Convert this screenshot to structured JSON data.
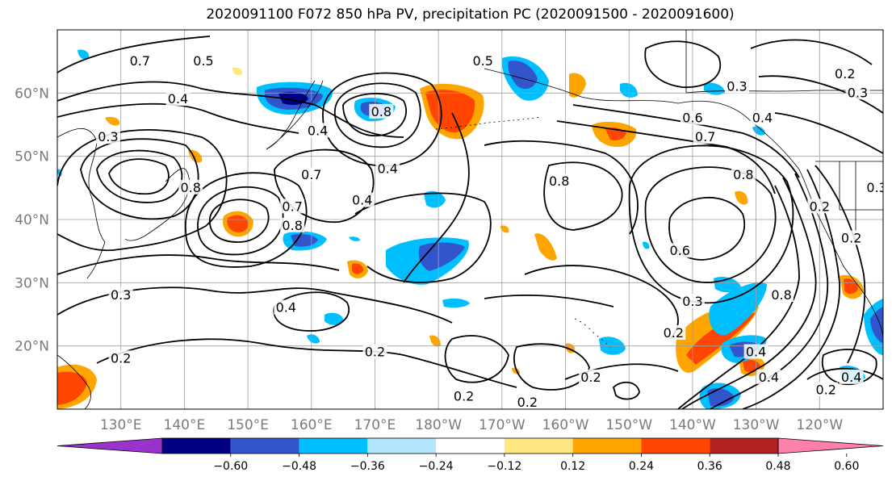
{
  "title": "2020091100 F072 850 hPa PV, precipitation PC (2020091500 - 2020091600)",
  "map": {
    "lon_range": [
      120,
      250
    ],
    "lat_range": [
      10,
      70
    ],
    "lat_ticks": [
      {
        "value": 20,
        "label": "20°N"
      },
      {
        "value": 30,
        "label": "30°N"
      },
      {
        "value": 40,
        "label": "40°N"
      },
      {
        "value": 50,
        "label": "50°N"
      },
      {
        "value": 60,
        "label": "60°N"
      }
    ],
    "lon_ticks": [
      {
        "value": 130,
        "label": "130°E"
      },
      {
        "value": 140,
        "label": "140°E"
      },
      {
        "value": 150,
        "label": "150°E"
      },
      {
        "value": 160,
        "label": "160°E"
      },
      {
        "value": 170,
        "label": "170°E"
      },
      {
        "value": 180,
        "label": "180°W"
      },
      {
        "value": 190,
        "label": "170°W"
      },
      {
        "value": 200,
        "label": "160°W"
      },
      {
        "value": 210,
        "label": "150°W"
      },
      {
        "value": 220,
        "label": "140°W"
      },
      {
        "value": 230,
        "label": "130°W"
      },
      {
        "value": 240,
        "label": "120°W"
      }
    ],
    "gridlines": true,
    "pv_contour_labels": [
      {
        "lon": 133,
        "lat": 65,
        "text": "0.7"
      },
      {
        "lon": 143,
        "lat": 65,
        "text": "0.5"
      },
      {
        "lon": 139,
        "lat": 59,
        "text": "0.4"
      },
      {
        "lon": 128,
        "lat": 53,
        "text": "0.3"
      },
      {
        "lon": 141,
        "lat": 45,
        "text": "0.8"
      },
      {
        "lon": 161,
        "lat": 54,
        "text": "0.4"
      },
      {
        "lon": 160,
        "lat": 47,
        "text": "0.7"
      },
      {
        "lon": 157,
        "lat": 39,
        "text": "0.8"
      },
      {
        "lon": 157,
        "lat": 42,
        "text": "0.7"
      },
      {
        "lon": 171,
        "lat": 57,
        "text": "0.8"
      },
      {
        "lon": 172,
        "lat": 48,
        "text": "0.4"
      },
      {
        "lon": 168,
        "lat": 43,
        "text": "0.4"
      },
      {
        "lon": 187,
        "lat": 65,
        "text": "0.5"
      },
      {
        "lon": 199,
        "lat": 46,
        "text": "0.8"
      },
      {
        "lon": 220,
        "lat": 56,
        "text": "0.6"
      },
      {
        "lon": 222,
        "lat": 53,
        "text": "0.7"
      },
      {
        "lon": 231,
        "lat": 56,
        "text": "0.4"
      },
      {
        "lon": 227,
        "lat": 61,
        "text": "0.3"
      },
      {
        "lon": 246,
        "lat": 60,
        "text": "0.3"
      },
      {
        "lon": 244,
        "lat": 63,
        "text": "0.2"
      },
      {
        "lon": 228,
        "lat": 47,
        "text": "0.8"
      },
      {
        "lon": 249,
        "lat": 45,
        "text": "0.3"
      },
      {
        "lon": 240,
        "lat": 42,
        "text": "0.2"
      },
      {
        "lon": 245,
        "lat": 37,
        "text": "0.2"
      },
      {
        "lon": 218,
        "lat": 35,
        "text": "0.6"
      },
      {
        "lon": 220,
        "lat": 27,
        "text": "0.3"
      },
      {
        "lon": 234,
        "lat": 28,
        "text": "0.8"
      },
      {
        "lon": 217,
        "lat": 22,
        "text": "0.2"
      },
      {
        "lon": 230,
        "lat": 19,
        "text": "0.4"
      },
      {
        "lon": 232,
        "lat": 15,
        "text": "0.4"
      },
      {
        "lon": 245,
        "lat": 15,
        "text": "0.4"
      },
      {
        "lon": 241,
        "lat": 13,
        "text": "0.2"
      },
      {
        "lon": 130,
        "lat": 28,
        "text": "0.3"
      },
      {
        "lon": 156,
        "lat": 26,
        "text": "0.4"
      },
      {
        "lon": 130,
        "lat": 18,
        "text": "0.2"
      },
      {
        "lon": 170,
        "lat": 19,
        "text": "0.2"
      },
      {
        "lon": 184,
        "lat": 12,
        "text": "0.2"
      },
      {
        "lon": 204,
        "lat": 15,
        "text": "0.2"
      },
      {
        "lon": 194,
        "lat": 11,
        "text": "0.2"
      }
    ]
  },
  "colorbar": {
    "levels": [
      -0.6,
      -0.48,
      -0.36,
      -0.24,
      -0.12,
      0.12,
      0.24,
      0.36,
      0.48,
      0.6
    ],
    "labels": [
      "−0.60",
      "−0.48",
      "−0.36",
      "−0.24",
      "−0.12",
      "0.12",
      "0.24",
      "0.36",
      "0.48",
      "0.60"
    ],
    "colors": [
      "#9933cc",
      "#000080",
      "#3355cc",
      "#00bfff",
      "#b3e5fc",
      "#ffffff",
      "#ffe680",
      "#ffa500",
      "#ff4500",
      "#b22222",
      "#ff80aa"
    ]
  }
}
